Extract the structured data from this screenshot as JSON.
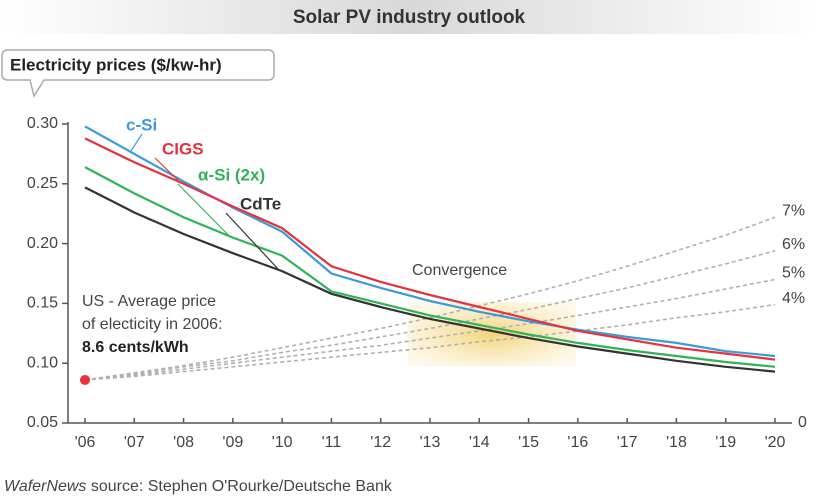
{
  "chart_data": {
    "type": "line",
    "title": "Solar PV industry outlook",
    "y_label": "Electricity prices ($/kw-hr)",
    "categories": [
      "'06",
      "'07",
      "'08",
      "'09",
      "'10",
      "'11",
      "'12",
      "'13",
      "'14",
      "'15",
      "'16",
      "'17",
      "'18",
      "'19",
      "'20"
    ],
    "ylim": [
      0.05,
      0.3
    ],
    "yticks": [
      {
        "value": 0.3,
        "label": "0.30"
      },
      {
        "value": 0.25,
        "label": "0.25"
      },
      {
        "value": 0.2,
        "label": "0.20"
      },
      {
        "value": 0.15,
        "label": "0.15"
      },
      {
        "value": 0.1,
        "label": "0.10"
      },
      {
        "value": 0.05,
        "label": "0.05"
      }
    ],
    "y2ticks": [
      0
    ],
    "series": [
      {
        "name": "c-Si",
        "color": "#3b9ad8",
        "values": [
          0.298,
          0.275,
          0.252,
          0.23,
          0.21,
          0.175,
          0.163,
          0.152,
          0.143,
          0.135,
          0.128,
          0.122,
          0.117,
          0.11,
          0.106
        ]
      },
      {
        "name": "CIGS",
        "color": "#e5323f",
        "values": [
          0.288,
          0.268,
          0.25,
          0.231,
          0.213,
          0.181,
          0.168,
          0.157,
          0.147,
          0.137,
          0.127,
          0.12,
          0.113,
          0.108,
          0.103
        ]
      },
      {
        "name": "α-Si (2x)",
        "color": "#2fb35a",
        "values": [
          0.264,
          0.242,
          0.222,
          0.205,
          0.19,
          0.16,
          0.15,
          0.14,
          0.132,
          0.124,
          0.117,
          0.111,
          0.106,
          0.101,
          0.097
        ]
      },
      {
        "name": "CdTe",
        "color": "#333333",
        "values": [
          0.247,
          0.226,
          0.208,
          0.192,
          0.177,
          0.158,
          0.147,
          0.137,
          0.129,
          0.121,
          0.114,
          0.108,
          0.102,
          0.097,
          0.093
        ]
      }
    ],
    "growth_series": [
      {
        "name": "7%",
        "color": "#b0b0b0",
        "values": [
          0.086,
          0.092,
          0.098,
          0.105,
          0.113,
          0.121,
          0.129,
          0.138,
          0.148,
          0.158,
          0.169,
          0.181,
          0.194,
          0.207,
          0.222
        ]
      },
      {
        "name": "6%",
        "color": "#b0b0b0",
        "values": [
          0.086,
          0.091,
          0.097,
          0.102,
          0.109,
          0.115,
          0.122,
          0.129,
          0.137,
          0.145,
          0.154,
          0.163,
          0.173,
          0.183,
          0.194
        ]
      },
      {
        "name": "5%",
        "color": "#b0b0b0",
        "values": [
          0.086,
          0.09,
          0.095,
          0.1,
          0.105,
          0.11,
          0.115,
          0.121,
          0.127,
          0.133,
          0.14,
          0.147,
          0.154,
          0.162,
          0.17
        ]
      },
      {
        "name": "4%",
        "color": "#b0b0b0",
        "values": [
          0.086,
          0.089,
          0.093,
          0.097,
          0.101,
          0.105,
          0.109,
          0.113,
          0.118,
          0.122,
          0.127,
          0.132,
          0.138,
          0.143,
          0.149
        ]
      }
    ],
    "start_point": {
      "value": 0.086,
      "color": "#e5323f"
    },
    "annotations": {
      "convergence": "Convergence",
      "us_line1": "US - Average price",
      "us_line2": "of electicity in 2006:",
      "us_line3": "8.6 cents/kWh"
    },
    "source": {
      "publication": "WaferNews",
      "text": " source: Stephen O'Rourke/Deutsche Bank"
    }
  }
}
